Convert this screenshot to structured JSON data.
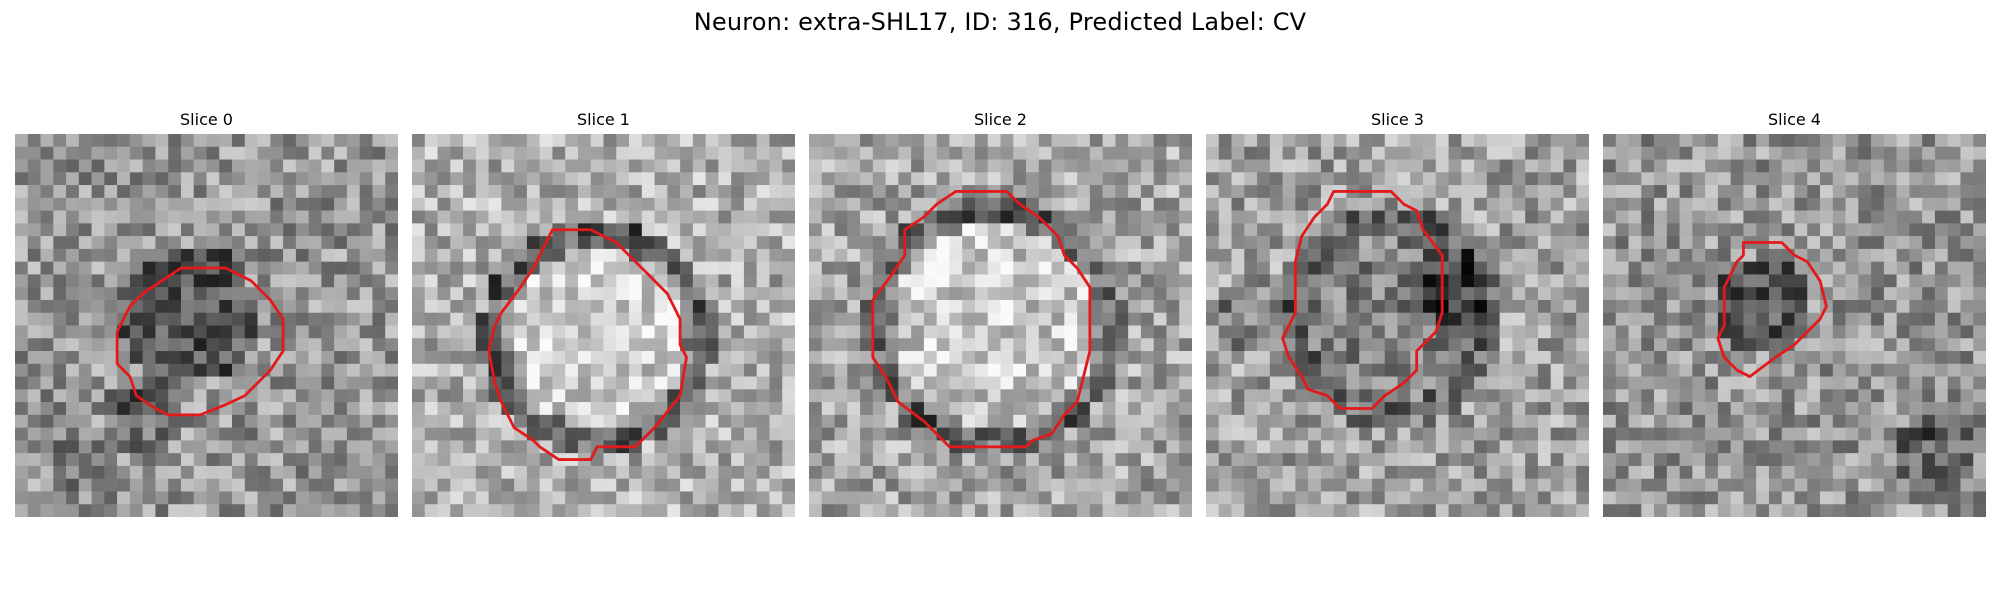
{
  "figure": {
    "title": "Neuron: extra-SHL17, ID: 316, Predicted Label: CV",
    "contour_color": "#e31a1c",
    "colormap": "grayscale",
    "grid_size": 30
  },
  "panels": [
    {
      "title": "Slice 0",
      "image": "grayscale-noise-dark-cell",
      "contour": "red-outline-icon"
    },
    {
      "title": "Slice 1",
      "image": "grayscale-noise-bright-cell",
      "contour": "red-outline-icon"
    },
    {
      "title": "Slice 2",
      "image": "grayscale-noise-bright-cell",
      "contour": "red-outline-icon"
    },
    {
      "title": "Slice 3",
      "image": "grayscale-noise-mixed-cell",
      "contour": "red-outline-icon"
    },
    {
      "title": "Slice 4",
      "image": "grayscale-noise-dark-cell",
      "contour": "red-outline-icon"
    }
  ]
}
